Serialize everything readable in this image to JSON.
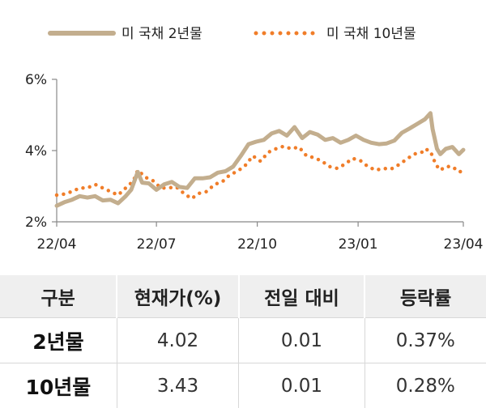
{
  "chart_data": {
    "type": "line",
    "series": [
      {
        "name": "미 국채 2년물",
        "color": "#c3ae8e",
        "style": "solid",
        "points": [
          [
            "2022-04-01",
            2.45
          ],
          [
            "2022-04-08",
            2.55
          ],
          [
            "2022-04-15",
            2.62
          ],
          [
            "2022-04-22",
            2.72
          ],
          [
            "2022-04-29",
            2.68
          ],
          [
            "2022-05-06",
            2.72
          ],
          [
            "2022-05-13",
            2.6
          ],
          [
            "2022-05-20",
            2.62
          ],
          [
            "2022-05-27",
            2.52
          ],
          [
            "2022-06-03",
            2.72
          ],
          [
            "2022-06-08",
            2.9
          ],
          [
            "2022-06-14",
            3.4
          ],
          [
            "2022-06-18",
            3.1
          ],
          [
            "2022-06-24",
            3.08
          ],
          [
            "2022-07-01",
            2.9
          ],
          [
            "2022-07-08",
            3.05
          ],
          [
            "2022-07-15",
            3.12
          ],
          [
            "2022-07-22",
            2.98
          ],
          [
            "2022-07-29",
            2.95
          ],
          [
            "2022-08-05",
            3.22
          ],
          [
            "2022-08-12",
            3.22
          ],
          [
            "2022-08-19",
            3.25
          ],
          [
            "2022-08-26",
            3.38
          ],
          [
            "2022-09-02",
            3.42
          ],
          [
            "2022-09-09",
            3.55
          ],
          [
            "2022-09-16",
            3.85
          ],
          [
            "2022-09-23",
            4.18
          ],
          [
            "2022-09-30",
            4.25
          ],
          [
            "2022-10-07",
            4.3
          ],
          [
            "2022-10-14",
            4.48
          ],
          [
            "2022-10-21",
            4.55
          ],
          [
            "2022-10-28",
            4.42
          ],
          [
            "2022-11-04",
            4.66
          ],
          [
            "2022-11-11",
            4.35
          ],
          [
            "2022-11-18",
            4.52
          ],
          [
            "2022-11-25",
            4.45
          ],
          [
            "2022-12-02",
            4.3
          ],
          [
            "2022-12-09",
            4.35
          ],
          [
            "2022-12-16",
            4.22
          ],
          [
            "2022-12-23",
            4.3
          ],
          [
            "2022-12-30",
            4.42
          ],
          [
            "2023-01-06",
            4.3
          ],
          [
            "2023-01-13",
            4.22
          ],
          [
            "2023-01-20",
            4.18
          ],
          [
            "2023-01-27",
            4.2
          ],
          [
            "2023-02-03",
            4.28
          ],
          [
            "2023-02-10",
            4.5
          ],
          [
            "2023-02-17",
            4.62
          ],
          [
            "2023-02-24",
            4.75
          ],
          [
            "2023-03-03",
            4.88
          ],
          [
            "2023-03-08",
            5.05
          ],
          [
            "2023-03-10",
            4.6
          ],
          [
            "2023-03-14",
            4.05
          ],
          [
            "2023-03-17",
            3.9
          ],
          [
            "2023-03-22",
            4.05
          ],
          [
            "2023-03-28",
            4.1
          ],
          [
            "2023-04-03",
            3.9
          ],
          [
            "2023-04-07",
            4.02
          ]
        ]
      },
      {
        "name": "미 국채 10년물",
        "color": "#f07d29",
        "style": "dotted",
        "points": [
          [
            "2022-04-01",
            2.75
          ],
          [
            "2022-04-08",
            2.78
          ],
          [
            "2022-04-15",
            2.85
          ],
          [
            "2022-04-22",
            2.95
          ],
          [
            "2022-04-29",
            2.95
          ],
          [
            "2022-05-06",
            3.05
          ],
          [
            "2022-05-13",
            2.95
          ],
          [
            "2022-05-20",
            2.85
          ],
          [
            "2022-05-27",
            2.75
          ],
          [
            "2022-06-03",
            2.95
          ],
          [
            "2022-06-10",
            3.15
          ],
          [
            "2022-06-14",
            3.45
          ],
          [
            "2022-06-21",
            3.25
          ],
          [
            "2022-06-28",
            3.15
          ],
          [
            "2022-07-05",
            2.95
          ],
          [
            "2022-07-12",
            2.95
          ],
          [
            "2022-07-19",
            2.98
          ],
          [
            "2022-07-26",
            2.8
          ],
          [
            "2022-08-02",
            2.65
          ],
          [
            "2022-08-09",
            2.8
          ],
          [
            "2022-08-16",
            2.85
          ],
          [
            "2022-08-23",
            3.05
          ],
          [
            "2022-08-30",
            3.12
          ],
          [
            "2022-09-06",
            3.32
          ],
          [
            "2022-09-13",
            3.42
          ],
          [
            "2022-09-20",
            3.58
          ],
          [
            "2022-09-27",
            3.85
          ],
          [
            "2022-10-04",
            3.7
          ],
          [
            "2022-10-11",
            3.95
          ],
          [
            "2022-10-18",
            4.05
          ],
          [
            "2022-10-25",
            4.12
          ],
          [
            "2022-11-01",
            4.05
          ],
          [
            "2022-11-08",
            4.1
          ],
          [
            "2022-11-15",
            3.85
          ],
          [
            "2022-11-22",
            3.8
          ],
          [
            "2022-11-29",
            3.7
          ],
          [
            "2022-12-06",
            3.55
          ],
          [
            "2022-12-13",
            3.5
          ],
          [
            "2022-12-20",
            3.62
          ],
          [
            "2022-12-27",
            3.78
          ],
          [
            "2023-01-03",
            3.72
          ],
          [
            "2023-01-10",
            3.55
          ],
          [
            "2023-01-17",
            3.45
          ],
          [
            "2023-01-24",
            3.5
          ],
          [
            "2023-01-31",
            3.48
          ],
          [
            "2023-02-07",
            3.6
          ],
          [
            "2023-02-14",
            3.75
          ],
          [
            "2023-02-21",
            3.9
          ],
          [
            "2023-02-28",
            3.95
          ],
          [
            "2023-03-03",
            4.05
          ],
          [
            "2023-03-08",
            3.98
          ],
          [
            "2023-03-13",
            3.6
          ],
          [
            "2023-03-17",
            3.45
          ],
          [
            "2023-03-22",
            3.55
          ],
          [
            "2023-03-28",
            3.55
          ],
          [
            "2023-04-03",
            3.4
          ],
          [
            "2023-04-07",
            3.43
          ]
        ]
      }
    ],
    "x_range": [
      "2022-04-01",
      "2023-04-07"
    ],
    "x_ticks": [
      {
        "date": "2022-04-01",
        "label": "22/04"
      },
      {
        "date": "2022-07-01",
        "label": "22/07"
      },
      {
        "date": "2022-10-01",
        "label": "22/10"
      },
      {
        "date": "2023-01-01",
        "label": "23/01"
      },
      {
        "date": "2023-04-07",
        "label": "23/04"
      }
    ],
    "y_ticks": [
      {
        "value": 2,
        "label": "2%"
      },
      {
        "value": 4,
        "label": "4%"
      },
      {
        "value": 6,
        "label": "6%"
      }
    ],
    "ylim": [
      2,
      6
    ],
    "grid": false,
    "legend": "top"
  },
  "table": {
    "headers": [
      "구분",
      "현재가(%)",
      "전일 대비",
      "등락률"
    ],
    "rows": [
      [
        "2년물",
        "4.02",
        "0.01",
        "0.37%"
      ],
      [
        "10년물",
        "3.43",
        "0.01",
        "0.28%"
      ]
    ]
  }
}
